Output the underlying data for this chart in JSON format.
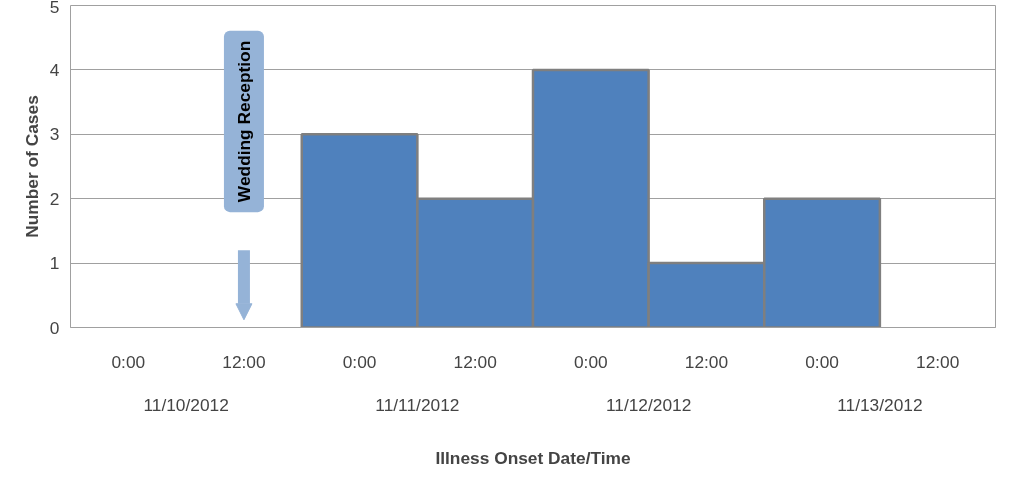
{
  "chart_data": {
    "type": "bar",
    "xlabel": "Illness Onset Date/Time",
    "ylabel": "Number of Cases",
    "categories": [
      "0:00",
      "12:00",
      "0:00",
      "12:00",
      "0:00",
      "12:00",
      "0:00",
      "12:00"
    ],
    "values": [
      0,
      0,
      3,
      2,
      4,
      1,
      2,
      0
    ],
    "color": "#4f81bd",
    "ylim": [
      0,
      5
    ],
    "yticks": [
      0,
      1,
      2,
      3,
      4,
      5
    ],
    "grid": "y",
    "annotations": [
      "Wedding Reception",
      "11/10/2012",
      "11/11/2012",
      "11/12/2012",
      "11/13/2012"
    ]
  }
}
